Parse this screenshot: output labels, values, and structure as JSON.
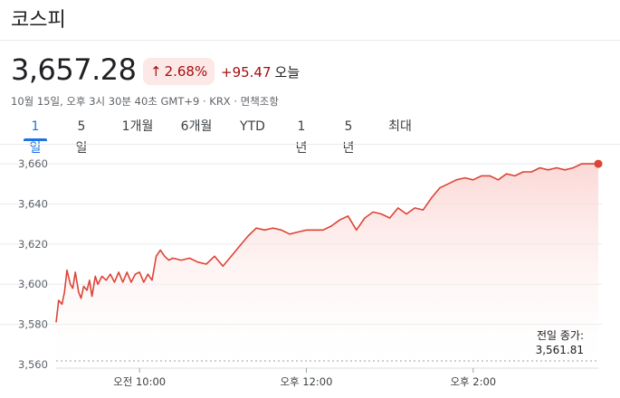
{
  "header": {
    "title": "코스피",
    "price": "3,657.28",
    "pct_arrow": "↑",
    "pct_change": "2.68%",
    "abs_change": "+95.47",
    "period_label": "오늘",
    "meta": "10월 15일, 오후 3시 30분 40초 GMT+9 · KRX · 면책조항"
  },
  "tabs": [
    {
      "label": "1일",
      "active": true
    },
    {
      "label": "5일",
      "active": false
    },
    {
      "label": "1개월",
      "active": false
    },
    {
      "label": "6개월",
      "active": false
    },
    {
      "label": "YTD",
      "active": false
    },
    {
      "label": "1년",
      "active": false
    },
    {
      "label": "5년",
      "active": false
    },
    {
      "label": "최대",
      "active": false
    }
  ],
  "prev_close": {
    "label": "전일 종가:",
    "value": "3,561.81"
  },
  "colors": {
    "line": "#db4437",
    "fill_top": "#fad2cf",
    "active_tab": "#1a73e8",
    "negative_text": "#a50e0e"
  },
  "chart_data": {
    "type": "area",
    "ylim": [
      3560,
      3665
    ],
    "xlim": [
      9.0,
      15.5
    ],
    "yticks": [
      {
        "v": 3660,
        "label": "3,660"
      },
      {
        "v": 3640,
        "label": "3,640"
      },
      {
        "v": 3620,
        "label": "3,620"
      },
      {
        "v": 3600,
        "label": "3,600"
      },
      {
        "v": 3580,
        "label": "3,580"
      },
      {
        "v": 3560,
        "label": "3,560"
      }
    ],
    "xticks": [
      {
        "v": 10.0,
        "label": "오전 10:00"
      },
      {
        "v": 12.0,
        "label": "오후 12:00"
      },
      {
        "v": 14.0,
        "label": "오후 2:00"
      }
    ],
    "prev_close": 3561.81,
    "series": [
      {
        "x": [
          9.0,
          9.03,
          9.07,
          9.1,
          9.13,
          9.17,
          9.2,
          9.23,
          9.27,
          9.3,
          9.33,
          9.37,
          9.4,
          9.43,
          9.47,
          9.5,
          9.55,
          9.6,
          9.65,
          9.7,
          9.75,
          9.8,
          9.85,
          9.9,
          9.95,
          10.0,
          10.05,
          10.1,
          10.15,
          10.2,
          10.25,
          10.3,
          10.35,
          10.4,
          10.5,
          10.6,
          10.7,
          10.8,
          10.9,
          11.0,
          11.1,
          11.2,
          11.3,
          11.4,
          11.5,
          11.6,
          11.7,
          11.8,
          11.9,
          12.0,
          12.1,
          12.2,
          12.3,
          12.4,
          12.5,
          12.6,
          12.7,
          12.8,
          12.9,
          13.0,
          13.1,
          13.2,
          13.3,
          13.4,
          13.5,
          13.6,
          13.7,
          13.8,
          13.9,
          14.0,
          14.1,
          14.2,
          14.3,
          14.4,
          14.5,
          14.6,
          14.7,
          14.8,
          14.9,
          15.0,
          15.1,
          15.2,
          15.3,
          15.4,
          15.5
        ],
        "y": [
          3581,
          3592,
          3590,
          3596,
          3607,
          3600,
          3598,
          3606,
          3596,
          3593,
          3599,
          3597,
          3602,
          3594,
          3604,
          3600,
          3604,
          3602,
          3605,
          3601,
          3606,
          3601,
          3606,
          3601,
          3605,
          3606,
          3601,
          3605,
          3602,
          3614,
          3617,
          3614,
          3612,
          3613,
          3612,
          3613,
          3611,
          3610,
          3614,
          3609,
          3614,
          3619,
          3624,
          3628,
          3627,
          3628,
          3627,
          3625,
          3626,
          3627,
          3627,
          3627,
          3629,
          3632,
          3634,
          3627,
          3633,
          3636,
          3635,
          3633,
          3638,
          3635,
          3638,
          3637,
          3643,
          3648,
          3650,
          3652,
          3653,
          3652,
          3654,
          3654,
          3652,
          3655,
          3654,
          3656,
          3656,
          3658,
          3657,
          3658,
          3657,
          3658,
          3660,
          3660,
          3660
        ]
      }
    ]
  }
}
